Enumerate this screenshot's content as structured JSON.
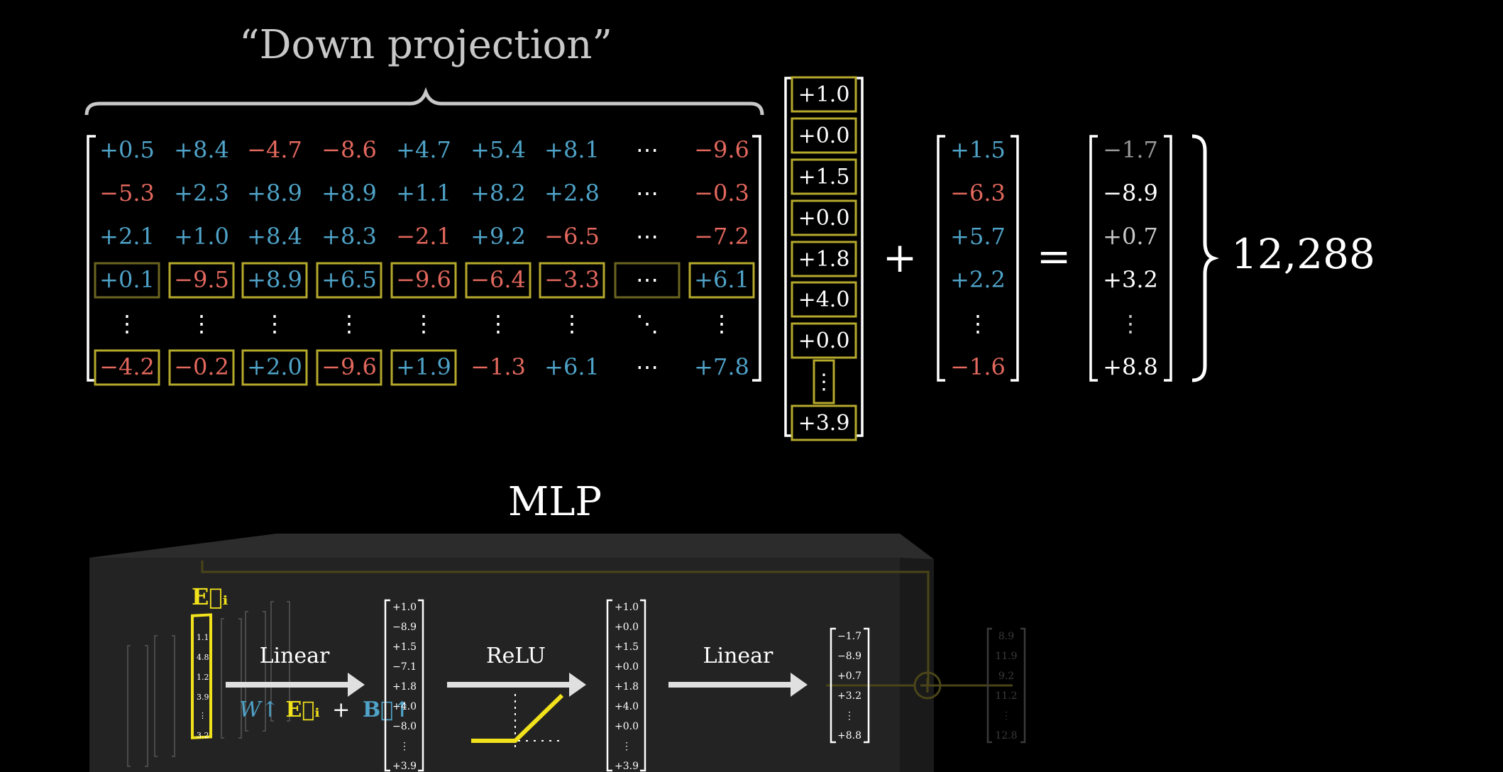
{
  "title": "“Down projection”",
  "matrix": {
    "rows": [
      [
        "+0.5",
        "+8.4",
        "−4.7",
        "−8.6",
        "+4.7",
        "+5.4",
        "+8.1",
        "⋯",
        "−9.6"
      ],
      [
        "−5.3",
        "+2.3",
        "+8.9",
        "+8.9",
        "+1.1",
        "+8.2",
        "+2.8",
        "⋯",
        "−0.3"
      ],
      [
        "+2.1",
        "+1.0",
        "+8.4",
        "+8.3",
        "−2.1",
        "+9.2",
        "−6.5",
        "⋯",
        "−7.2"
      ],
      [
        "+0.1",
        "−9.5",
        "+8.9",
        "+6.5",
        "−9.6",
        "−6.4",
        "−3.3",
        "⋯",
        "+6.1"
      ],
      [
        "⋮",
        "⋮",
        "⋮",
        "⋮",
        "⋮",
        "⋮",
        "⋮",
        "⋱",
        "⋮"
      ],
      [
        "−4.2",
        "−0.2",
        "+2.0",
        "−9.6",
        "+1.9",
        "−1.3",
        "+6.1",
        "⋯",
        "+7.8"
      ]
    ]
  },
  "hidden_vector": [
    "+1.0",
    "+0.0",
    "+1.5",
    "+0.0",
    "+1.8",
    "+4.0",
    "+0.0",
    "⋮",
    "+3.9"
  ],
  "bias_vector": [
    "+1.5",
    "−6.3",
    "+5.7",
    "+2.2",
    "⋮",
    "−1.6"
  ],
  "result_vector": [
    "−1.7",
    "−8.9",
    "+0.7",
    "+3.2",
    "⋮",
    "+8.8"
  ],
  "operators": {
    "plus": "+",
    "equals": "="
  },
  "dimension_label": "12,288",
  "mlp": {
    "title": "MLP",
    "embedding_label": "E⃗ᵢ",
    "linear1_label": "Linear",
    "formula": {
      "w": "W↑",
      "e": "E⃗ᵢ",
      "plus": "+",
      "b": "B⃗↑"
    },
    "relu_label": "ReLU",
    "linear2_label": "Linear",
    "vec1": [
      "+1.0",
      "−8.9",
      "+1.5",
      "−7.1",
      "+1.8",
      "+4.0",
      "−8.0",
      "⋮",
      "+3.9"
    ],
    "vec2": [
      "+1.0",
      "+0.0",
      "+1.5",
      "+0.0",
      "+1.8",
      "+4.0",
      "+0.0",
      "⋮",
      "+3.9"
    ],
    "vec3": [
      "−1.7",
      "−8.9",
      "+0.7",
      "+3.2",
      "⋮",
      "+8.8"
    ],
    "faded_vec": [
      "8.9",
      "11.9",
      "9.2",
      "11.2",
      "⋮",
      "12.8"
    ]
  },
  "colors": {
    "positive": "#4fa3c8",
    "negative": "#e3685e",
    "highlight_box": "#b5a92c",
    "relu_yellow": "#f2e21c"
  }
}
